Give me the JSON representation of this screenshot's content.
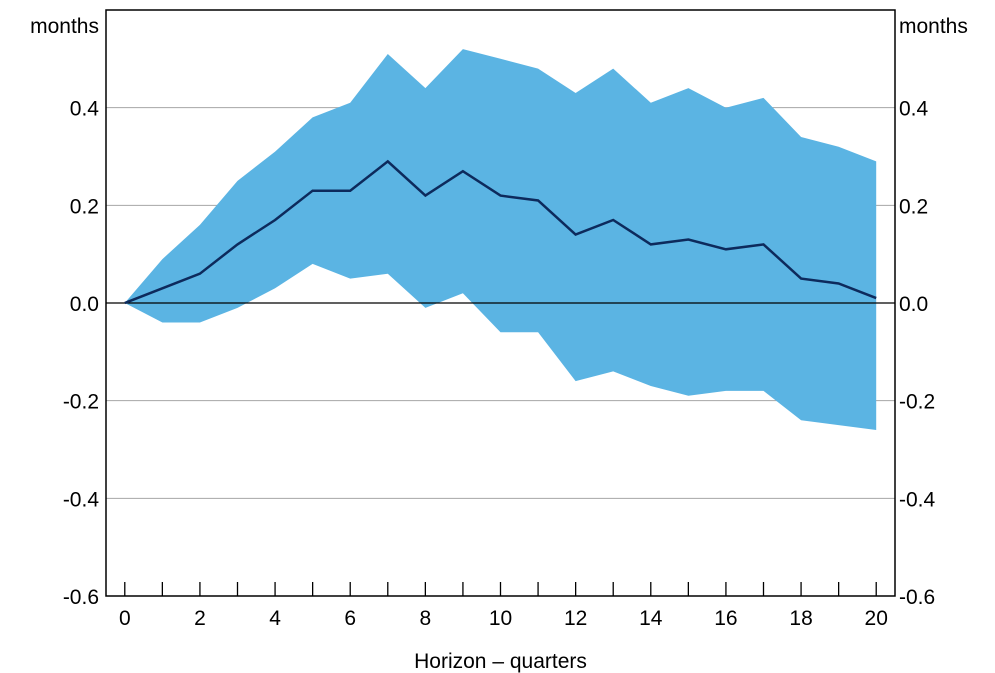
{
  "chart_data": {
    "type": "line",
    "xlabel": "Horizon – quarters",
    "y_unit_left": "months",
    "y_unit_right": "months",
    "xlim": [
      -0.5,
      20.5
    ],
    "ylim": [
      -0.6,
      0.6
    ],
    "x_ticks": [
      0,
      2,
      4,
      6,
      8,
      10,
      12,
      14,
      16,
      18,
      20
    ],
    "x_minor_ticks": [
      1,
      3,
      5,
      7,
      9,
      11,
      13,
      15,
      17,
      19
    ],
    "y_ticks": [
      -0.6,
      -0.4,
      -0.2,
      0.0,
      0.2,
      0.4
    ],
    "y_tick_labels": [
      "-0.6",
      "-0.4",
      "-0.2",
      "0.0",
      "0.2",
      "0.4"
    ],
    "x_tick_labels": [
      "0",
      "2",
      "4",
      "6",
      "8",
      "10",
      "12",
      "14",
      "16",
      "18",
      "20"
    ],
    "grid": "horizontal",
    "x": [
      0,
      1,
      2,
      3,
      4,
      5,
      6,
      7,
      8,
      9,
      10,
      11,
      12,
      13,
      14,
      15,
      16,
      17,
      18,
      19,
      20
    ],
    "series": [
      {
        "kind": "line",
        "values": [
          0.0,
          0.03,
          0.06,
          0.12,
          0.17,
          0.23,
          0.23,
          0.29,
          0.22,
          0.27,
          0.22,
          0.21,
          0.14,
          0.17,
          0.12,
          0.13,
          0.11,
          0.12,
          0.05,
          0.04,
          0.01
        ]
      },
      {
        "kind": "band",
        "upper": [
          0.0,
          0.09,
          0.16,
          0.25,
          0.31,
          0.38,
          0.41,
          0.51,
          0.44,
          0.52,
          0.5,
          0.48,
          0.43,
          0.48,
          0.41,
          0.44,
          0.4,
          0.42,
          0.34,
          0.32,
          0.29
        ],
        "lower": [
          0.0,
          -0.04,
          -0.04,
          -0.01,
          0.03,
          0.08,
          0.05,
          0.06,
          -0.01,
          0.02,
          -0.06,
          -0.06,
          -0.16,
          -0.14,
          -0.17,
          -0.19,
          -0.18,
          -0.18,
          -0.24,
          -0.25,
          -0.26
        ]
      }
    ],
    "colors": {
      "band": "#5bb4e3",
      "line": "#0d2a5c",
      "grid": "#a6a6a6",
      "zero_line": "#000000",
      "frame": "#000000"
    }
  }
}
